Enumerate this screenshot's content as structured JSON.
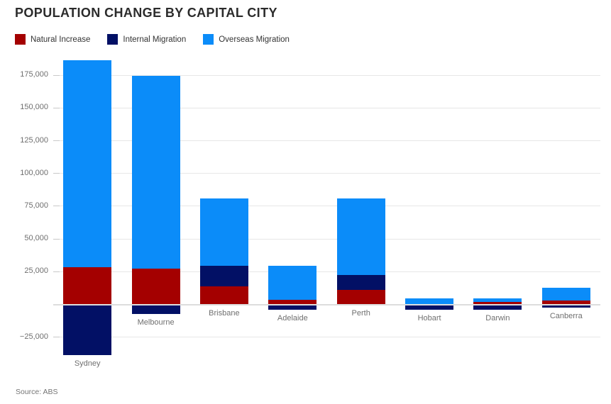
{
  "header": {
    "title": "POPULATION CHANGE BY CAPITAL CITY"
  },
  "chart_data": {
    "type": "bar",
    "stacked": true,
    "title": "POPULATION CHANGE BY CAPITAL CITY",
    "categories": [
      "Sydney",
      "Melbourne",
      "Brisbane",
      "Adelaide",
      "Perth",
      "Hobart",
      "Darwin",
      "Canberra"
    ],
    "series": [
      {
        "name": "Natural Increase",
        "color": "#a40000",
        "values": [
          28300,
          27300,
          13800,
          3500,
          11100,
          500,
          1900,
          3000
        ]
      },
      {
        "name": "Internal Migration",
        "color": "#021065",
        "values": [
          -38700,
          -7100,
          15700,
          -4000,
          11400,
          -4300,
          -4100,
          -2500
        ]
      },
      {
        "name": "Overseas Migration",
        "color": "#0b8cf9",
        "values": [
          158000,
          147500,
          51400,
          26000,
          58400,
          4100,
          2700,
          9700
        ]
      }
    ],
    "xlabel": "",
    "ylabel": "",
    "yticks": [
      175000,
      150000,
      125000,
      100000,
      75000,
      50000,
      25000,
      -25000
    ],
    "ylim": [
      -40000,
      192000
    ],
    "grid": "horizontal",
    "legend_position": "top-left",
    "accent_colors": {
      "natural_increase": "#a40000",
      "internal_migration": "#021065",
      "overseas_migration": "#0b8cf9",
      "gridline": "#e7e7e7",
      "zero_line": "#dddddd",
      "axis_text": "#6f6f6f"
    }
  },
  "footer": {
    "source": "Source: ABS"
  }
}
